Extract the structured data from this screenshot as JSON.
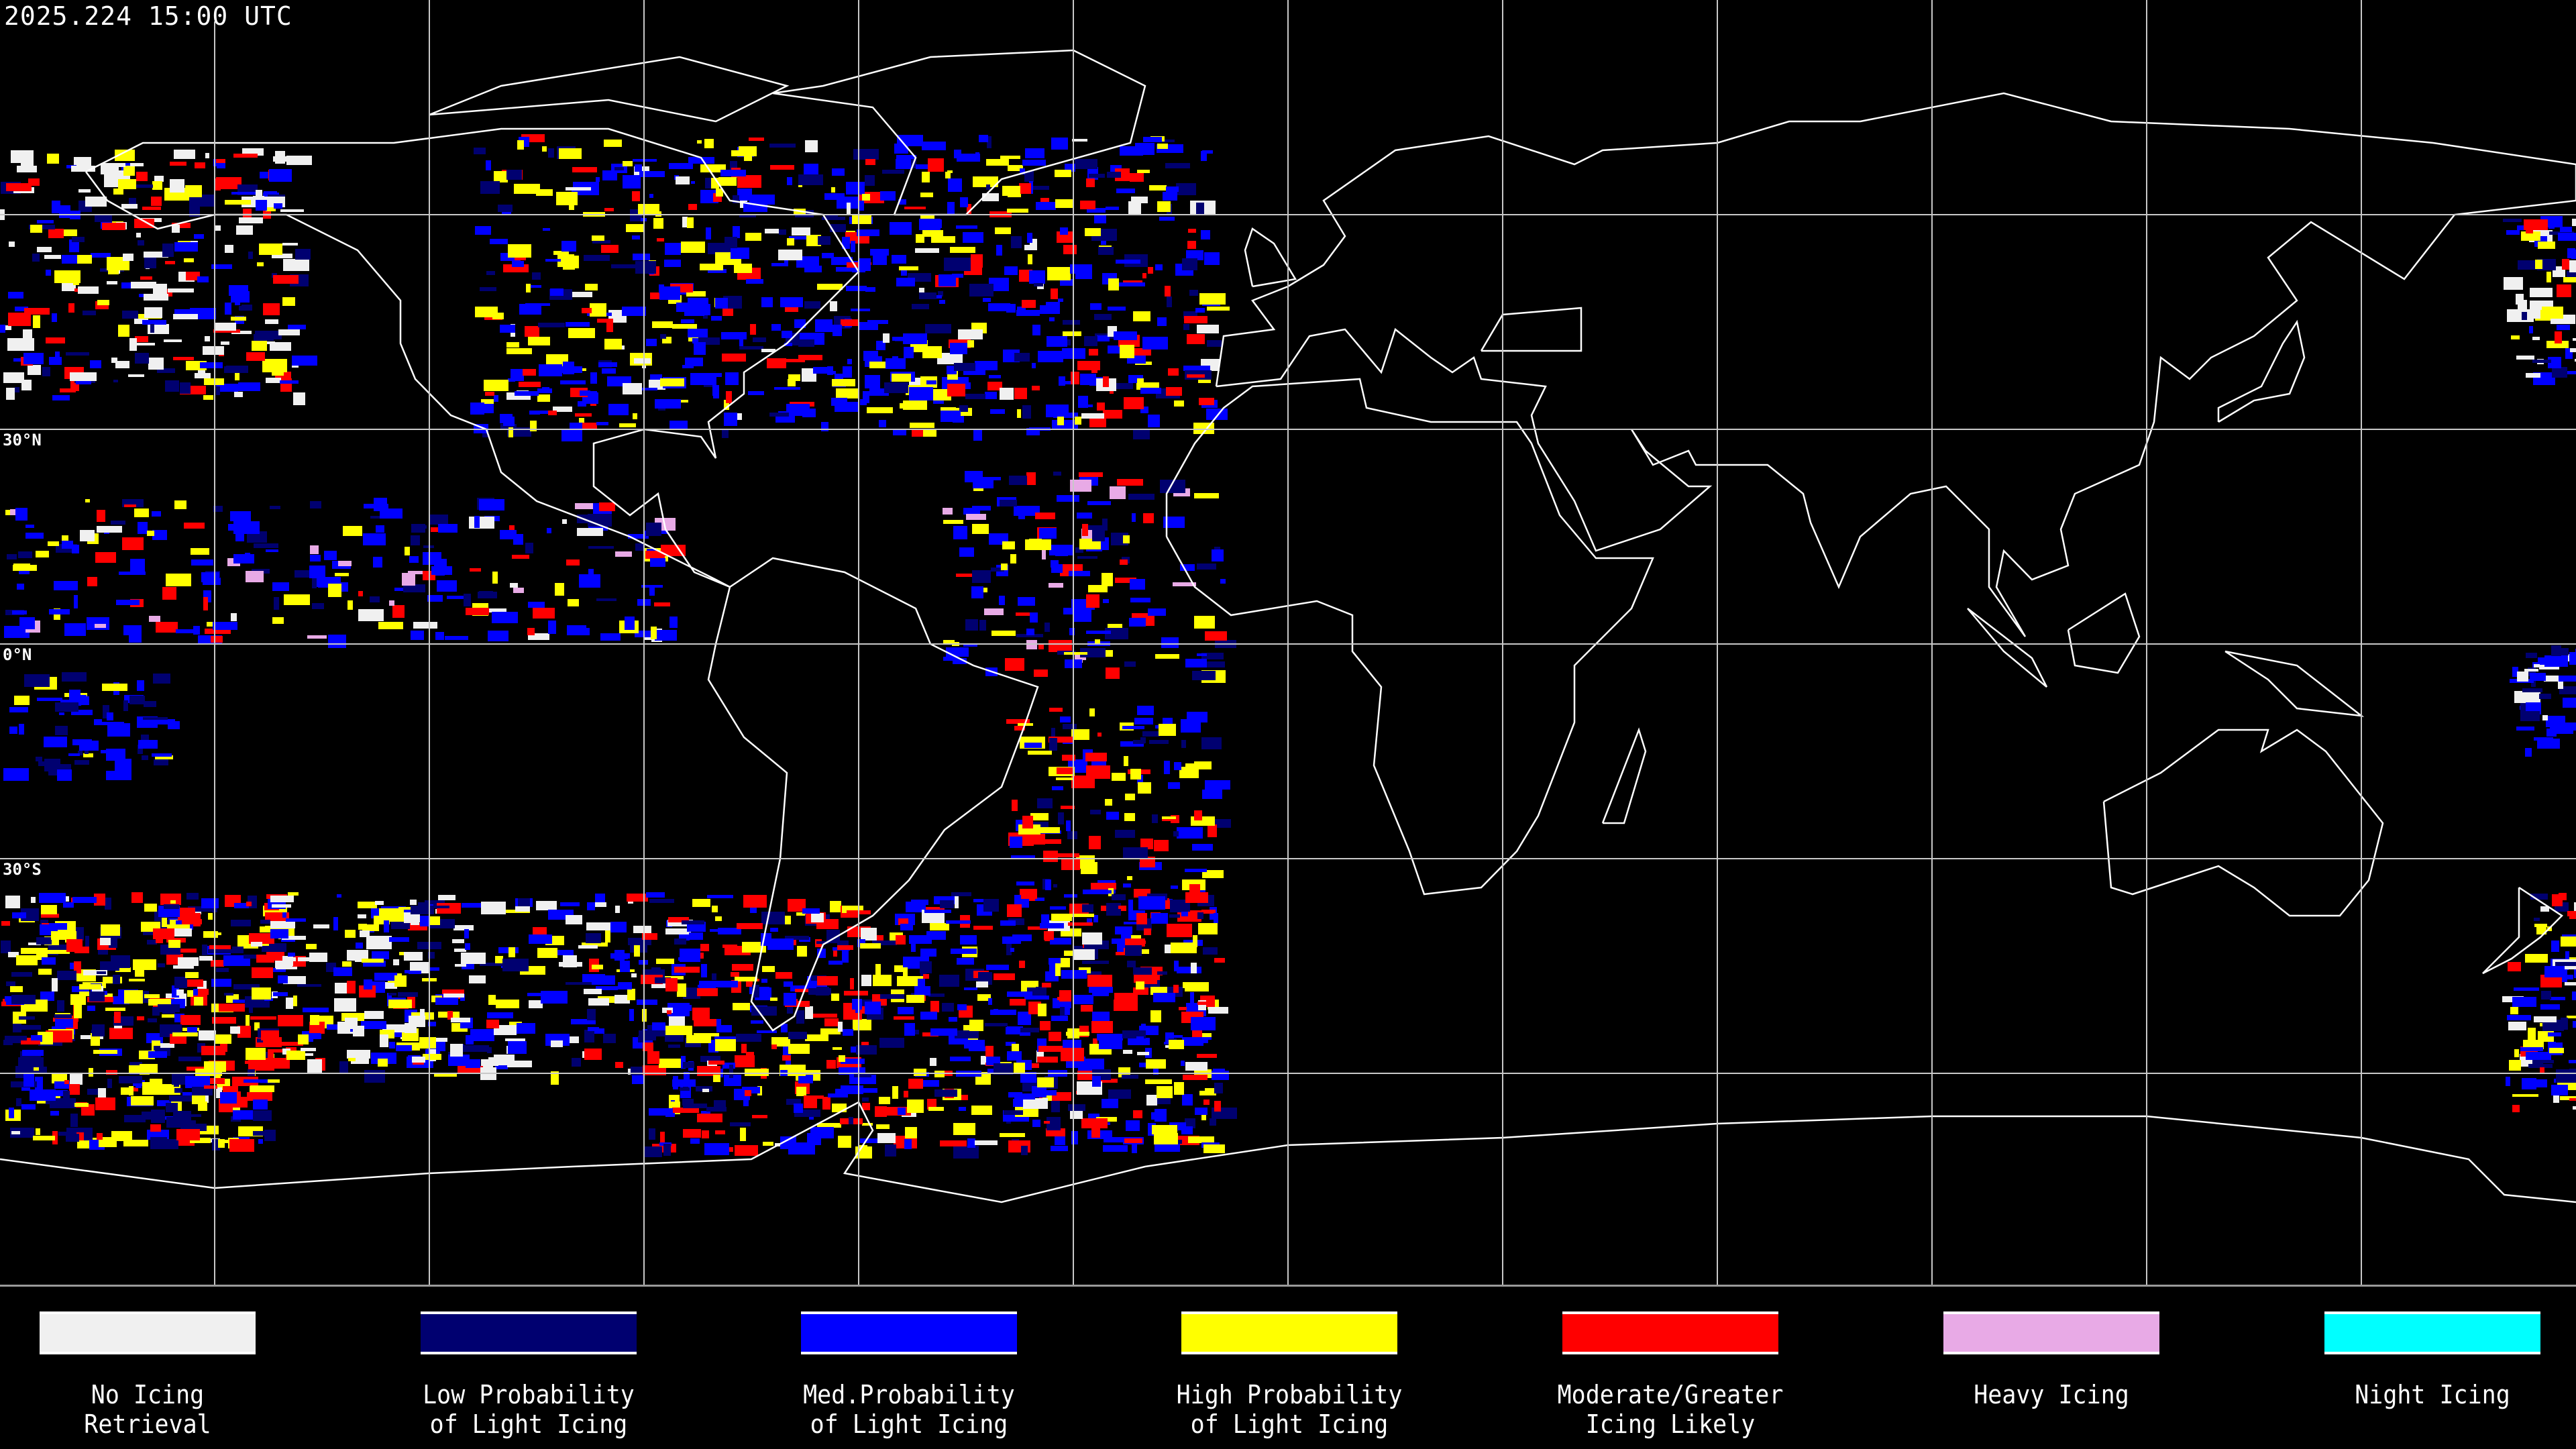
{
  "header": {
    "timestamp": "2025.224 15:00 UTC"
  },
  "map": {
    "lat_labels": [
      "30°N",
      "0°N",
      "30°S"
    ],
    "projection": "equirectangular",
    "gridline_spacing_deg": 30,
    "background": "#000000",
    "coastline_color": "#ffffff"
  },
  "legend": [
    {
      "line1": "No Icing",
      "line2": "Retrieval",
      "color": "#f0f0f0"
    },
    {
      "line1": "Low Probability",
      "line2": "of Light Icing",
      "color": "#000070"
    },
    {
      "line1": "Med.Probability",
      "line2": "of Light Icing",
      "color": "#0000ff"
    },
    {
      "line1": "High Probability",
      "line2": "of Light Icing",
      "color": "#ffff00"
    },
    {
      "line1": "Moderate/Greater",
      "line2": "Icing Likely",
      "color": "#ff0000"
    },
    {
      "line1": "Heavy Icing",
      "line2": "",
      "color": "#e8aae6"
    },
    {
      "line1": "Night Icing",
      "line2": "",
      "color": "#00ffff"
    }
  ]
}
